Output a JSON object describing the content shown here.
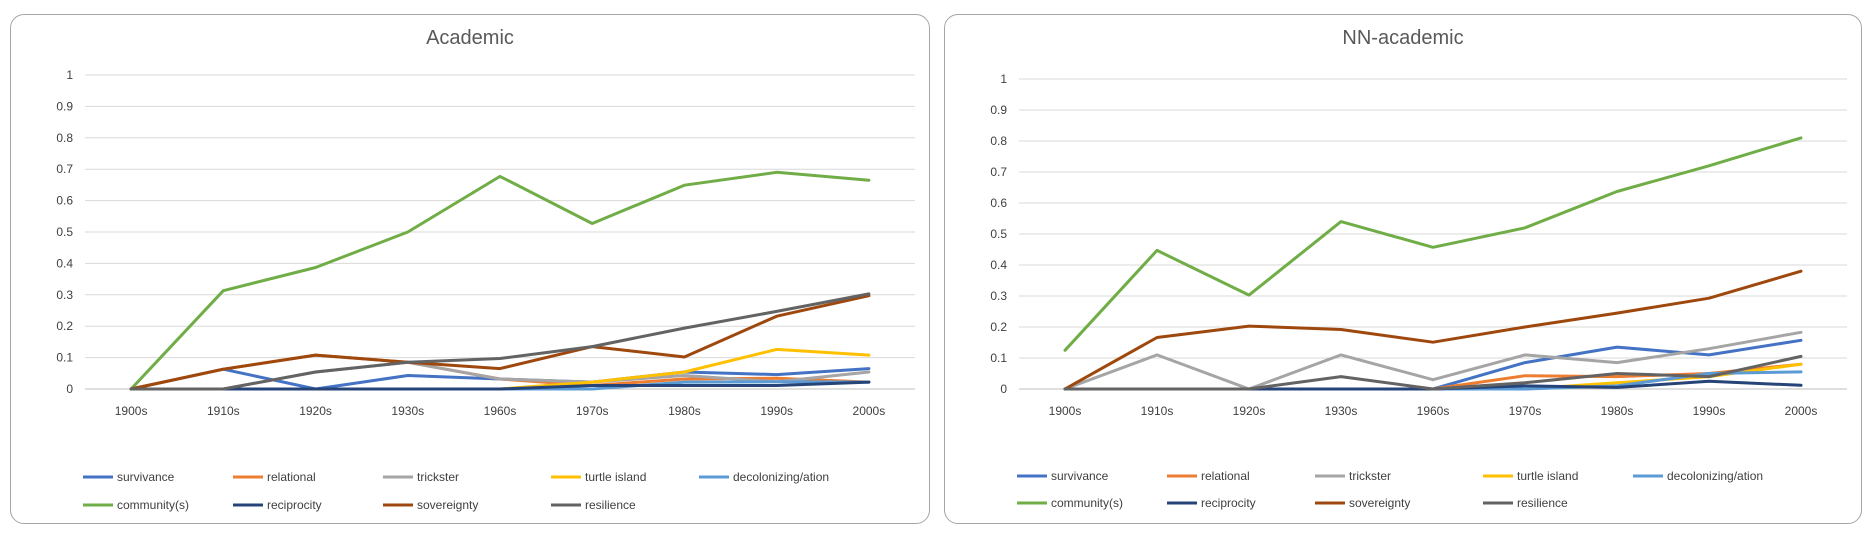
{
  "chart_data": [
    {
      "type": "line",
      "title": "Academic",
      "categories": [
        "1900s",
        "1910s",
        "1920s",
        "1930s",
        "1960s",
        "1970s",
        "1980s",
        "1990s",
        "2000s"
      ],
      "ylim": [
        0,
        1
      ],
      "yticks": [
        0,
        0.1,
        0.2,
        0.3,
        0.4,
        0.5,
        0.6,
        0.7,
        0.8,
        0.9,
        1
      ],
      "ytick_labels": [
        "0",
        "0.1",
        "0.2",
        "0.3",
        "0.4",
        "0.5",
        "0.6",
        "0.7",
        "0.8",
        "0.9",
        "1"
      ],
      "grid": true,
      "legend_position": "bottom",
      "series": [
        {
          "name": "survivance",
          "color": "#4472c4",
          "values": [
            0,
            0.063,
            0,
            0.043,
            0.032,
            0.022,
            0.054,
            0.046,
            0.065
          ]
        },
        {
          "name": "relational",
          "color": "#ed7d31",
          "values": [
            0,
            0.063,
            0.108,
            0.085,
            0.032,
            0.011,
            0.032,
            0.034,
            0.022
          ]
        },
        {
          "name": "trickster",
          "color": "#a5a5a5",
          "values": [
            0,
            0,
            0.054,
            0.085,
            0.032,
            0.022,
            0.043,
            0.023,
            0.054
          ]
        },
        {
          "name": "turtle island",
          "color": "#ffc000",
          "values": [
            0,
            0,
            0,
            0,
            0,
            0.022,
            0.054,
            0.126,
            0.108
          ]
        },
        {
          "name": "decolonizing/ation",
          "color": "#5b9bd5",
          "values": [
            0,
            0,
            0,
            0,
            0,
            0,
            0.022,
            0.023,
            0.022
          ]
        },
        {
          "name": "community(s)",
          "color": "#70ad47",
          "values": [
            0,
            0.313,
            0.387,
            0.5,
            0.677,
            0.527,
            0.649,
            0.69,
            0.665
          ]
        },
        {
          "name": "reciprocity",
          "color": "#264478",
          "values": [
            0,
            0,
            0,
            0,
            0,
            0.011,
            0.011,
            0.011,
            0.022
          ]
        },
        {
          "name": "sovereignty",
          "color": "#9e480e",
          "values": [
            0,
            0.063,
            0.108,
            0.085,
            0.065,
            0.135,
            0.102,
            0.232,
            0.297
          ]
        },
        {
          "name": "resilience",
          "color": "#636363",
          "values": [
            0,
            0,
            0.054,
            0.085,
            0.097,
            0.135,
            0.194,
            0.247,
            0.303
          ]
        }
      ]
    },
    {
      "type": "line",
      "title": "NN-academic",
      "categories": [
        "1900s",
        "1910s",
        "1920s",
        "1930s",
        "1960s",
        "1970s",
        "1980s",
        "1990s",
        "2000s"
      ],
      "ylim": [
        0,
        1
      ],
      "yticks": [
        0,
        0.1,
        0.2,
        0.3,
        0.4,
        0.5,
        0.6,
        0.7,
        0.8,
        0.9,
        1
      ],
      "ytick_labels": [
        "0",
        "0.1",
        "0.2",
        "0.3",
        "0.4",
        "0.5",
        "0.6",
        "0.7",
        "0.8",
        "0.9",
        "1"
      ],
      "grid": true,
      "legend_position": "bottom",
      "series": [
        {
          "name": "survivance",
          "color": "#4472c4",
          "values": [
            0,
            0,
            0,
            0,
            0,
            0.085,
            0.135,
            0.11,
            0.157
          ]
        },
        {
          "name": "relational",
          "color": "#ed7d31",
          "values": [
            0,
            0,
            0,
            0,
            0,
            0.043,
            0.04,
            0.05,
            0.08
          ]
        },
        {
          "name": "trickster",
          "color": "#a5a5a5",
          "values": [
            0,
            0.11,
            0,
            0.11,
            0.03,
            0.11,
            0.085,
            0.13,
            0.183
          ]
        },
        {
          "name": "turtle island",
          "color": "#ffc000",
          "values": [
            0,
            0,
            0,
            0,
            0,
            0,
            0.02,
            0.04,
            0.08
          ]
        },
        {
          "name": "decolonizing/ation",
          "color": "#5b9bd5",
          "values": [
            0,
            0,
            0,
            0,
            0,
            0,
            0.01,
            0.05,
            0.055
          ]
        },
        {
          "name": "community(s)",
          "color": "#70ad47",
          "values": [
            0.125,
            0.447,
            0.303,
            0.54,
            0.457,
            0.52,
            0.637,
            0.72,
            0.81
          ]
        },
        {
          "name": "reciprocity",
          "color": "#264478",
          "values": [
            0,
            0,
            0,
            0,
            0,
            0.01,
            0.005,
            0.025,
            0.012
          ]
        },
        {
          "name": "sovereignty",
          "color": "#9e480e",
          "values": [
            0,
            0.166,
            0.203,
            0.192,
            0.151,
            0.2,
            0.245,
            0.293,
            0.38
          ]
        },
        {
          "name": "resilience",
          "color": "#636363",
          "values": [
            0,
            0,
            0,
            0.04,
            0,
            0.02,
            0.05,
            0.04,
            0.105
          ]
        }
      ]
    }
  ]
}
